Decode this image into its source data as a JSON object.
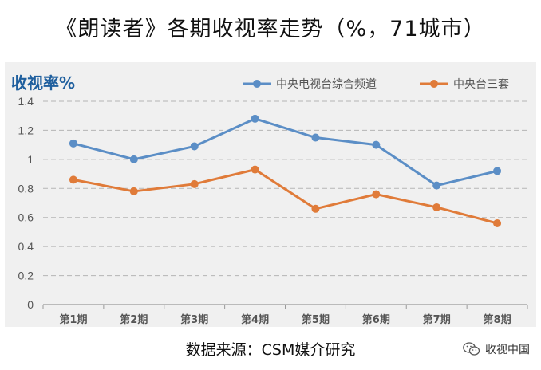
{
  "header": {
    "title": "《朗读者》各期收视率走势（%，71城市）"
  },
  "footer": {
    "source": "数据来源：CSM媒介研究",
    "watermark_text": "收视中国",
    "watermark_icon": "wechat-icon"
  },
  "colors": {
    "series1": "#5b8ec6",
    "series2": "#e07b39",
    "ylabel": "#1f5f9e"
  },
  "chart_data": {
    "type": "line",
    "title": "",
    "xlabel": "",
    "ylabel": "收视率%",
    "categories": [
      "第1期",
      "第2期",
      "第3期",
      "第4期",
      "第5期",
      "第6期",
      "第7期",
      "第8期"
    ],
    "ylim": [
      0,
      1.4
    ],
    "yticks": [
      "0",
      "0.2",
      "0.4",
      "0.6",
      "0.8",
      "1",
      "1.2",
      "1.4"
    ],
    "grid": true,
    "legend_position": "top",
    "series": [
      {
        "name": "中央电视台综合频道",
        "values": [
          1.11,
          1.0,
          1.09,
          1.28,
          1.15,
          1.1,
          0.82,
          0.92
        ]
      },
      {
        "name": "中央台三套",
        "values": [
          0.86,
          0.78,
          0.83,
          0.93,
          0.66,
          0.76,
          0.67,
          0.56
        ]
      }
    ]
  }
}
